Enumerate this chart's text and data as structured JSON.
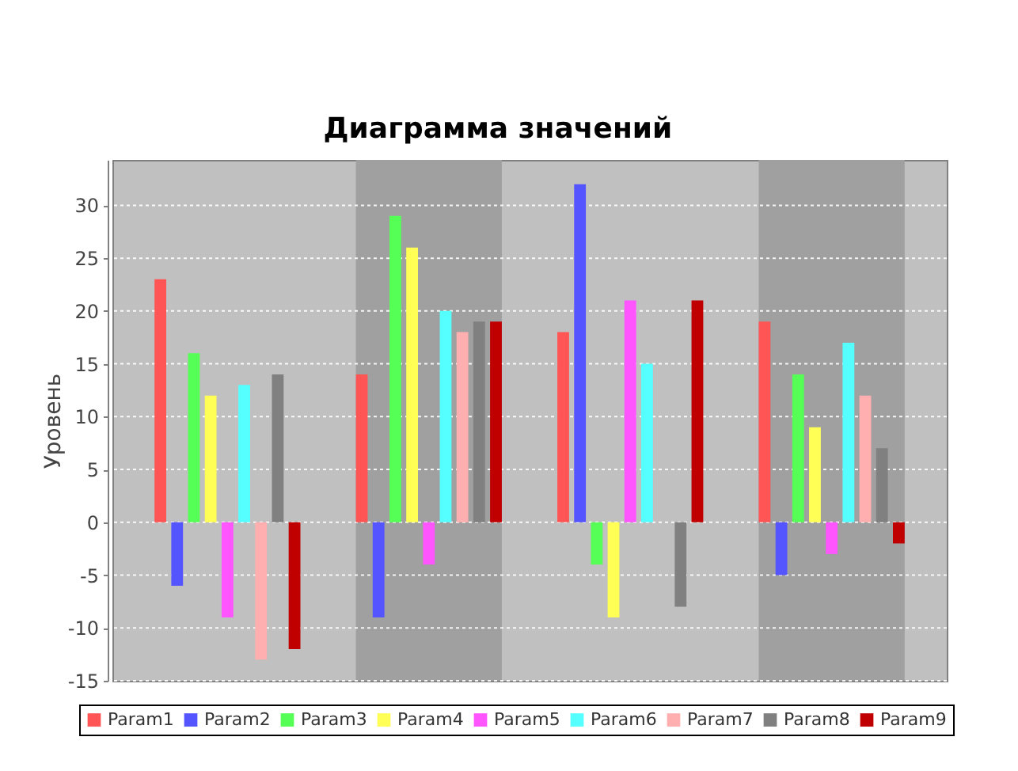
{
  "chart_data": {
    "type": "bar",
    "title": "Диаграмма значений",
    "ylabel": "Уровень",
    "categories": [
      null,
      null,
      null,
      null
    ],
    "series": [
      {
        "name": "Param1",
        "color": "#ff5555",
        "values": [
          23,
          14,
          18,
          19
        ]
      },
      {
        "name": "Param2",
        "color": "#5555ff",
        "values": [
          -6,
          -9,
          32,
          -5
        ]
      },
      {
        "name": "Param3",
        "color": "#55ff55",
        "values": [
          16,
          29,
          -4,
          14
        ]
      },
      {
        "name": "Param4",
        "color": "#ffff55",
        "values": [
          12,
          26,
          -9,
          9
        ]
      },
      {
        "name": "Param5",
        "color": "#ff55ff",
        "values": [
          -9,
          -4,
          21,
          -3
        ]
      },
      {
        "name": "Param6",
        "color": "#55ffff",
        "values": [
          13,
          20,
          15,
          17
        ]
      },
      {
        "name": "Param7",
        "color": "#ffafaf",
        "values": [
          -13,
          18,
          null,
          12
        ]
      },
      {
        "name": "Param8",
        "color": "#808080",
        "values": [
          14,
          19,
          -8,
          7
        ]
      },
      {
        "name": "Param9",
        "color": "#c00000",
        "values": [
          -12,
          19,
          21,
          -2
        ]
      }
    ],
    "ylim": [
      -15,
      34.3
    ],
    "yticks": [
      -15,
      -10,
      -5,
      0,
      5,
      10,
      15,
      20,
      25,
      30
    ],
    "grid": "y",
    "legend": "bottom",
    "tick_labels": "y"
  }
}
